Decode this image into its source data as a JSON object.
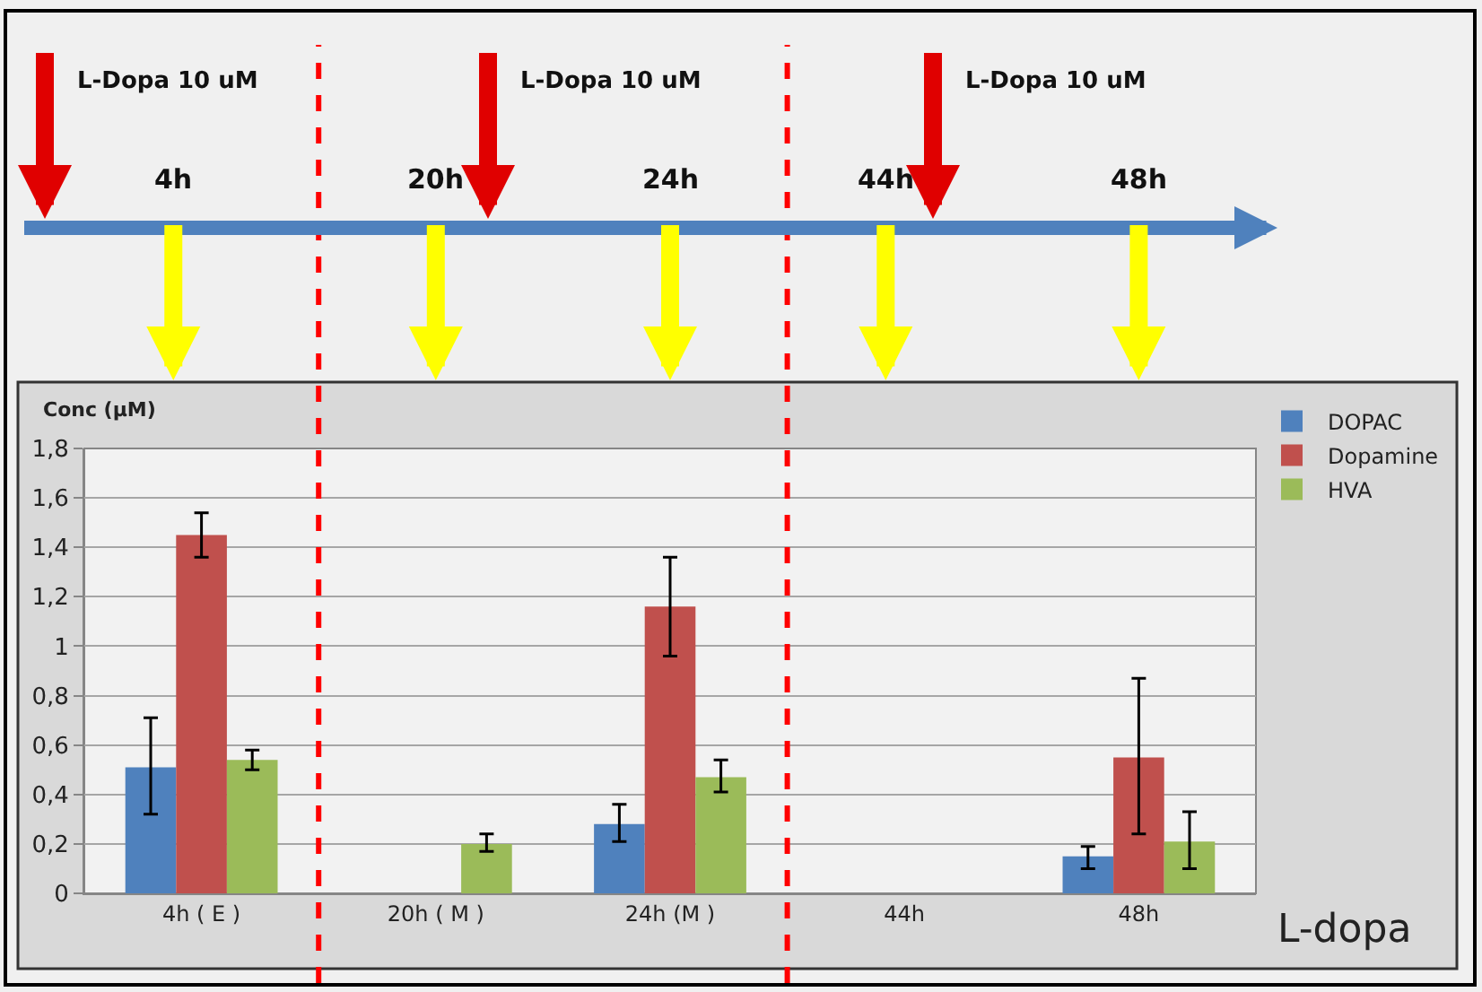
{
  "chart_data": {
    "type": "bar",
    "ylabel": "Conc (µM)",
    "xlabel": "L-dopa",
    "categories": [
      "4h ( E )",
      "20h ( M )",
      "24h (M )",
      "44h",
      "48h"
    ],
    "series": [
      {
        "name": "DOPAC",
        "color": "#4f81bd",
        "values": [
          0.51,
          null,
          0.28,
          null,
          0.15
        ],
        "errors": [
          [
            0.32,
            0.71
          ],
          null,
          [
            0.21,
            0.36
          ],
          null,
          [
            0.1,
            0.19
          ]
        ]
      },
      {
        "name": "Dopamine",
        "color": "#c0504d",
        "values": [
          1.45,
          null,
          1.16,
          null,
          0.55
        ],
        "errors": [
          [
            1.36,
            1.54
          ],
          null,
          [
            0.96,
            1.36
          ],
          null,
          [
            0.24,
            0.87
          ]
        ]
      },
      {
        "name": "HVA",
        "color": "#9bbb59",
        "values": [
          0.54,
          0.2,
          0.47,
          null,
          0.21
        ],
        "errors": [
          [
            0.5,
            0.58
          ],
          [
            0.17,
            0.24
          ],
          [
            0.41,
            0.54
          ],
          null,
          [
            0.1,
            0.33
          ]
        ]
      }
    ],
    "ylim": [
      0,
      1.8
    ],
    "yticks": [
      0,
      {
        "value": 0.2,
        "label": "0,2"
      },
      {
        "value": 0.4,
        "label": "0,4"
      },
      {
        "value": 0.6,
        "label": "0,6"
      },
      {
        "value": 0.8,
        "label": "0,8"
      },
      1,
      {
        "value": 1.2,
        "label": "1,2"
      },
      {
        "value": 1.4,
        "label": "1,4"
      },
      {
        "value": 1.6,
        "label": "1,6"
      },
      {
        "value": 1.8,
        "label": "1,8"
      }
    ],
    "grid": "y",
    "legend": "top right",
    "annotations": [
      "L-Dopa 10 uM",
      "L-Dopa 10 uM",
      "L-Dopa 10 uM",
      "4h",
      "20h",
      "24h",
      "44h",
      "48h"
    ]
  }
}
